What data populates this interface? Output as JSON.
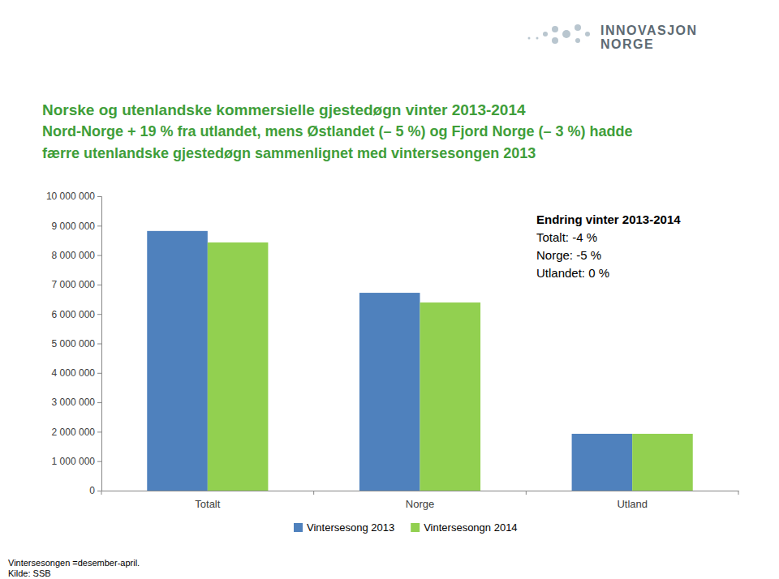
{
  "chart_data": {
    "type": "bar",
    "title": "Norske og utenlandske kommersielle gjestedøgn vinter 2013-2014",
    "subtitle": [
      "Nord-Norge + 19 % fra utlandet, mens Østlandet (– 5 %) og Fjord Norge (– 3 %) hadde",
      "færre utenlandske gjestedøgn sammenlignet med vintersesongen 2013"
    ],
    "logo": [
      "INNOVASJON",
      "NORGE"
    ],
    "categories": [
      "Totalt",
      "Norge",
      "Utland"
    ],
    "series": [
      {
        "name": "Vintersesong 2013",
        "color": "#4f81bd",
        "values": [
          8820000,
          6720000,
          1930000
        ]
      },
      {
        "name": "Vintersesongn 2014",
        "color": "#92d050",
        "values": [
          8430000,
          6390000,
          1930000
        ]
      }
    ],
    "ylim": [
      0,
      10000000
    ],
    "yticks": [
      {
        "value": 0,
        "label": "0"
      },
      {
        "value": 1000000,
        "label": "1 000 000"
      },
      {
        "value": 2000000,
        "label": "2 000 000"
      },
      {
        "value": 3000000,
        "label": "3 000 000"
      },
      {
        "value": 4000000,
        "label": "4 000 000"
      },
      {
        "value": 5000000,
        "label": "5 000 000"
      },
      {
        "value": 6000000,
        "label": "6 000 000"
      },
      {
        "value": 7000000,
        "label": "7 000 000"
      },
      {
        "value": 8000000,
        "label": "8 000 000"
      },
      {
        "value": 9000000,
        "label": "9 000 000"
      },
      {
        "value": 10000000,
        "label": "10 000 000"
      }
    ],
    "grid": false,
    "legend": "bottom",
    "annotations": [
      "Endring vinter 2013-2014",
      "Totalt: -4 %",
      "Norge: -5 %",
      "Utlandet: 0 %"
    ],
    "notes": [
      "Vintersesongen =desember-april.",
      "Kilde: SSB"
    ]
  }
}
